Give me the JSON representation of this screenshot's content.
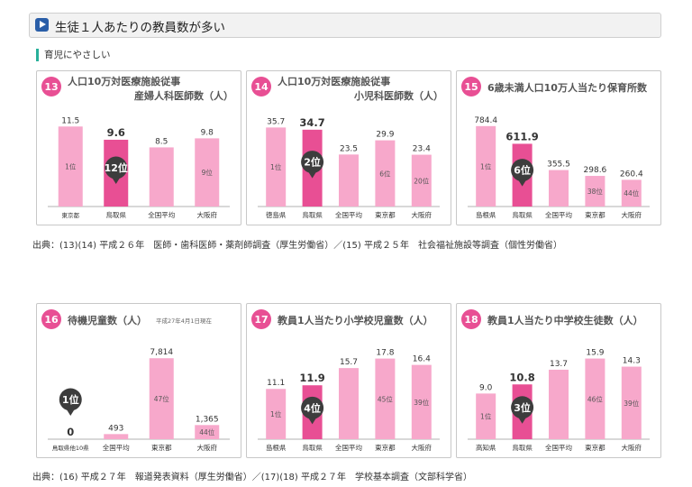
{
  "header": {
    "title": "生徒１人あたりの教員数が多い",
    "icon": "play-icon"
  },
  "section_label": "育児にやさしい",
  "sources": [
    "出典：(13)(14) 平成２６年　医師・歯科医師・薬剤師調査（厚生労働省）／(15) 平成２５年　社会福祉施設等調査（個性労働省）",
    "出典：(16) 平成２７年　報道発表資料（厚生労働省）／(17)(18) 平成２７年　学校基本調査（文部科学省）"
  ],
  "colors": {
    "accent": "#e84f94",
    "normal": "#f7a8cb",
    "badge": "#3d3d3d",
    "title_text": "#555555"
  },
  "chart_data": [
    {
      "type": "bar",
      "number": "13",
      "title": [
        "人口10万対医療施設従事",
        "産婦人科医師数（人）"
      ],
      "note": "",
      "categories": [
        "東京都",
        "鳥取県",
        "全国平均",
        "大阪府"
      ],
      "values": [
        11.5,
        9.6,
        8.5,
        9.8
      ],
      "value_labels": [
        "11.5",
        "9.6",
        "8.5",
        "9.8"
      ],
      "rank_labels": [
        "1位",
        "",
        "",
        "9位"
      ],
      "highlight_index": 1,
      "badge": "12位",
      "ylim": [
        0,
        14
      ]
    },
    {
      "type": "bar",
      "number": "14",
      "title": [
        "人口10万対医療施設従事",
        "小児科医師数（人）"
      ],
      "note": "",
      "categories": [
        "徳島県",
        "鳥取県",
        "全国平均",
        "東京都",
        "大阪府"
      ],
      "values": [
        35.7,
        34.7,
        23.5,
        29.9,
        23.4
      ],
      "value_labels": [
        "35.7",
        "34.7",
        "23.5",
        "29.9",
        "23.4"
      ],
      "rank_labels": [
        "1位",
        "",
        "",
        "6位",
        "20位"
      ],
      "highlight_index": 1,
      "badge": "2位",
      "ylim": [
        0,
        44
      ]
    },
    {
      "type": "bar",
      "number": "15",
      "title": [
        "6歳未満人口10万人当たり保育所数"
      ],
      "note": "",
      "categories": [
        "島根県",
        "鳥取県",
        "全国平均",
        "東京都",
        "大阪府"
      ],
      "values": [
        784.4,
        611.9,
        355.5,
        298.6,
        260.4
      ],
      "value_labels": [
        "784.4",
        "611.9",
        "355.5",
        "298.6",
        "260.4"
      ],
      "rank_labels": [
        "1位",
        "",
        "",
        "38位",
        "44位"
      ],
      "highlight_index": 1,
      "badge": "6位",
      "ylim": [
        0,
        950
      ]
    },
    {
      "type": "bar",
      "number": "16",
      "title": [
        "待機児童数（人）"
      ],
      "note": "平成27年4月1日現在",
      "categories": [
        "鳥取県他10県",
        "全国平均",
        "東京都",
        "大阪府"
      ],
      "values": [
        0,
        493,
        7814,
        1365
      ],
      "value_labels": [
        "0",
        "493",
        "7,814",
        "1,365"
      ],
      "rank_labels": [
        "",
        "",
        "47位",
        "44位"
      ],
      "highlight_index": 0,
      "badge": "1位",
      "ylim": [
        0,
        9400
      ]
    },
    {
      "type": "bar",
      "number": "17",
      "title": [
        "教員1人当たり小学校児童数（人）"
      ],
      "note": "",
      "categories": [
        "島根県",
        "鳥取県",
        "全国平均",
        "東京都",
        "大阪府"
      ],
      "values": [
        11.1,
        11.9,
        15.7,
        17.8,
        16.4
      ],
      "value_labels": [
        "11.1",
        "11.9",
        "15.7",
        "17.8",
        "16.4"
      ],
      "rank_labels": [
        "1位",
        "",
        "",
        "45位",
        "39位"
      ],
      "highlight_index": 1,
      "badge": "4位",
      "ylim": [
        0,
        21.5
      ]
    },
    {
      "type": "bar",
      "number": "18",
      "title": [
        "教員1人当たり中学校生徒数（人）"
      ],
      "note": "",
      "categories": [
        "高知県",
        "鳥取県",
        "全国平均",
        "東京都",
        "大阪府"
      ],
      "values": [
        9.0,
        10.8,
        13.7,
        15.9,
        14.3
      ],
      "value_labels": [
        "9.0",
        "10.8",
        "13.7",
        "15.9",
        "14.3"
      ],
      "rank_labels": [
        "1位",
        "",
        "",
        "46位",
        "39位"
      ],
      "highlight_index": 1,
      "badge": "3位",
      "ylim": [
        0,
        19.2
      ]
    }
  ]
}
